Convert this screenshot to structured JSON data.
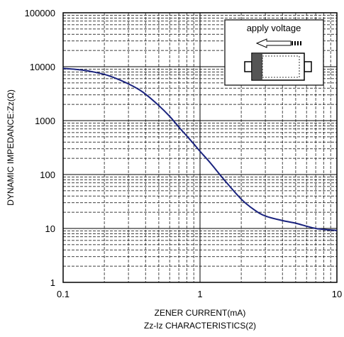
{
  "chart_data": {
    "type": "line",
    "xlabel": "ZENER CURRENT(mA)",
    "ylabel": "DYNAMIC IMPEDANCE:Zz(Ω)",
    "subtitle": "Zz-Iz CHARACTERISTICS(2)",
    "x_scale": "log",
    "y_scale": "log",
    "xlim": [
      0.1,
      10
    ],
    "ylim": [
      1,
      100000
    ],
    "x_ticks": [
      "0.1",
      "1",
      "10"
    ],
    "y_ticks": [
      "1",
      "10",
      "100",
      "1000",
      "10000",
      "100000"
    ],
    "grid": true,
    "inset_label": "apply voltage",
    "series": [
      {
        "color": "#1a237e",
        "x": [
          0.1,
          0.12,
          0.15,
          0.2,
          0.25,
          0.3,
          0.35,
          0.4,
          0.5,
          0.6,
          0.7,
          0.8,
          0.9,
          1.0,
          1.2,
          1.5,
          2.0,
          2.5,
          3.0,
          4.0,
          5.0,
          6.0,
          7.0,
          8.0,
          10.0
        ],
        "y": [
          9300,
          9000,
          8400,
          7200,
          5900,
          4800,
          3900,
          3100,
          1900,
          1200,
          760,
          520,
          370,
          270,
          160,
          80,
          35,
          22,
          17,
          14,
          12.5,
          11,
          10,
          9.6,
          9.2
        ]
      }
    ]
  }
}
